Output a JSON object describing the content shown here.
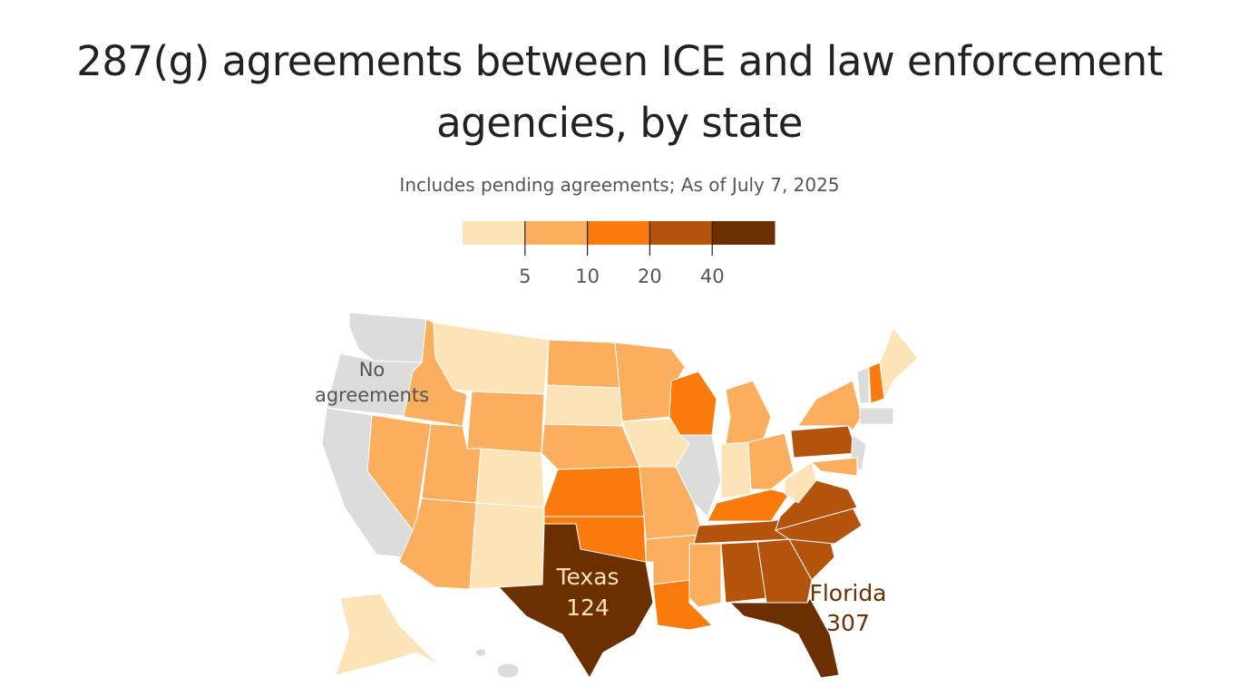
{
  "title": "287(g) agreements between ICE and law enforcement agencies, by state",
  "subtitle": "Includes pending agreements; As of July 7, 2025",
  "legend": {
    "colors": [
      "#fde3b8",
      "#fcae5f",
      "#fb7a0c",
      "#b4530b",
      "#6b2f00"
    ],
    "ticks": [
      5,
      10,
      20,
      40
    ],
    "none_color": "#dcdcdc"
  },
  "annotations": {
    "no_agreements": "No agreements",
    "texas": {
      "name": "Texas",
      "value": 124
    },
    "florida": {
      "name": "Florida",
      "value": 307
    }
  }
}
